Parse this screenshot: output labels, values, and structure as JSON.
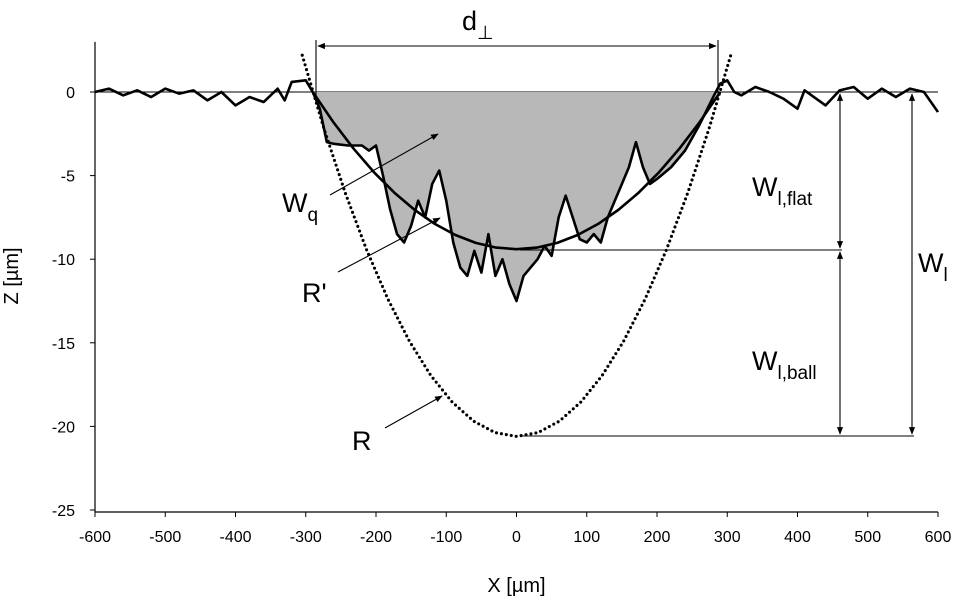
{
  "chart_data": {
    "type": "line",
    "xlabel": "X [µm]",
    "ylabel": "Z [µm]",
    "xlim": [
      -600,
      600
    ],
    "ylim": [
      -25,
      3
    ],
    "xticks": [
      -600,
      -500,
      -400,
      -300,
      -200,
      -100,
      0,
      100,
      200,
      300,
      400,
      500,
      600
    ],
    "yticks": [
      0,
      -5,
      -10,
      -15,
      -20,
      -25
    ],
    "series": [
      {
        "color": "#000000",
        "area_color": "#b8b8b8",
        "width": 2.6,
        "style": "solid",
        "x": [
          -600,
          -580,
          -560,
          -540,
          -520,
          -500,
          -480,
          -460,
          -440,
          -420,
          -400,
          -380,
          -360,
          -340,
          -330,
          -320,
          -300,
          -290,
          -280,
          -270,
          -260,
          -240,
          -220,
          -210,
          -200,
          -190,
          -180,
          -170,
          -160,
          -150,
          -140,
          -130,
          -120,
          -110,
          -100,
          -90,
          -80,
          -70,
          -60,
          -50,
          -40,
          -30,
          -20,
          -10,
          0,
          10,
          20,
          30,
          40,
          50,
          60,
          70,
          80,
          90,
          100,
          110,
          120,
          130,
          140,
          150,
          160,
          170,
          180,
          190,
          200,
          220,
          240,
          260,
          280,
          290,
          300,
          310,
          320,
          340,
          360,
          380,
          400,
          410,
          440,
          460,
          480,
          500,
          520,
          540,
          560,
          580,
          600
        ],
        "values": [
          0,
          0.2,
          -0.2,
          0.1,
          -0.3,
          0.2,
          -0.1,
          0.1,
          -0.5,
          0,
          -0.8,
          -0.3,
          -0.6,
          0.2,
          -0.5,
          0.6,
          0.7,
          0,
          -1,
          -3,
          -3.1,
          -3.2,
          -3.2,
          -3.5,
          -3.2,
          -5,
          -7,
          -8.5,
          -9,
          -8,
          -6.5,
          -7.5,
          -5.5,
          -4.7,
          -6.5,
          -9,
          -10.5,
          -11,
          -9.5,
          -10.8,
          -8.5,
          -11,
          -10,
          -11.5,
          -12.5,
          -11,
          -10.5,
          -10,
          -9.2,
          -9.8,
          -7.5,
          -6.2,
          -7.5,
          -8.8,
          -9,
          -8.5,
          -9,
          -7.5,
          -6.5,
          -5.5,
          -4.5,
          -3,
          -4.5,
          -5.5,
          -5.2,
          -4.5,
          -3.5,
          -2,
          -0.3,
          0.5,
          0.7,
          0,
          -0.2,
          0.3,
          0,
          -0.4,
          -1,
          0.1,
          -0.8,
          0.1,
          0.3,
          -0.4,
          0.2,
          -0.3,
          0.2,
          0,
          -1.2
        ]
      },
      {
        "color": "#000000",
        "width": 2.6,
        "style": "solid",
        "x": [
          -290,
          -261,
          -232,
          -203,
          -174,
          -145,
          -116,
          -87,
          -58,
          -29,
          0,
          29,
          58,
          87,
          116,
          145,
          174,
          203,
          232,
          261,
          290
        ],
        "values": [
          0,
          -1.786,
          -3.384,
          -4.794,
          -6.016,
          -7.05,
          -7.896,
          -8.554,
          -9.024,
          -9.306,
          -9.4,
          -9.306,
          -9.024,
          -8.554,
          -7.896,
          -7.05,
          -6.016,
          -4.794,
          -3.384,
          -1.786,
          0
        ]
      },
      {
        "color": "#000000",
        "width": 2.6,
        "style": "dotted",
        "x": [
          -305,
          -274.5,
          -244,
          -213.5,
          -183,
          -152.5,
          -122,
          -91.5,
          -61,
          -30.5,
          0,
          30.5,
          61,
          91.5,
          122,
          152.5,
          183,
          213.5,
          244,
          274.5,
          305
        ],
        "values": [
          2.2,
          -2.132,
          -6.008,
          -9.428,
          -12.392,
          -14.9,
          -16.952,
          -18.548,
          -19.688,
          -20.372,
          -20.6,
          -20.372,
          -19.688,
          -18.548,
          -16.952,
          -14.9,
          -12.392,
          -9.428,
          -6.008,
          -2.132,
          2.2
        ]
      }
    ],
    "annotations": [
      {
        "text": "d",
        "sub": "⊥"
      },
      {
        "text": "W",
        "sub": "q"
      },
      {
        "text": "R'"
      },
      {
        "text": "R"
      },
      {
        "text": "W",
        "sub": "l,flat"
      },
      {
        "text": "W",
        "sub": "l,ball"
      },
      {
        "text": "W",
        "sub": "l"
      }
    ]
  }
}
